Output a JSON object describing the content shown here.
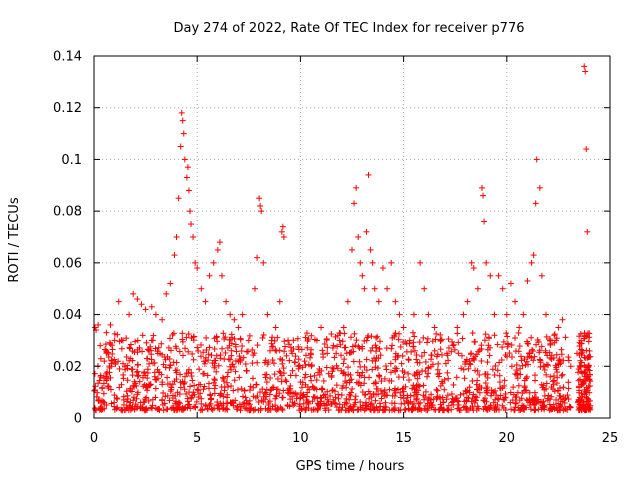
{
  "chart_data": {
    "type": "scatter",
    "title": "Day 274 of 2022, Rate Of TEC Index for receiver p776",
    "xlabel": "GPS time / hours",
    "ylabel": "ROTI / TECUs",
    "xlim": [
      0,
      25
    ],
    "ylim": [
      0,
      0.14
    ],
    "x_ticks": [
      0,
      5,
      10,
      15,
      20,
      25
    ],
    "y_ticks": [
      0,
      0.02,
      0.04,
      0.06,
      0.08,
      0.1,
      0.12,
      0.14
    ],
    "x_tick_labels": [
      "0",
      "5",
      "10",
      "15",
      "20",
      "25"
    ],
    "y_tick_labels": [
      "0",
      "0.02",
      "0.04",
      "0.06",
      "0.08",
      "0.1",
      "0.12",
      "0.14"
    ],
    "grid": true,
    "marker": "+",
    "color": "#ff0000",
    "series": [
      {
        "name": "ROTI",
        "points": [
          [
            0.05,
            0.035
          ],
          [
            0.1,
            0.034
          ],
          [
            0.2,
            0.036
          ],
          [
            0.3,
            0.028
          ],
          [
            0.5,
            0.022
          ],
          [
            0.6,
            0.033
          ],
          [
            0.8,
            0.036
          ],
          [
            1.0,
            0.03
          ],
          [
            1.2,
            0.045
          ],
          [
            1.4,
            0.03
          ],
          [
            1.7,
            0.04
          ],
          [
            1.9,
            0.048
          ],
          [
            2.1,
            0.046
          ],
          [
            2.3,
            0.044
          ],
          [
            2.5,
            0.042
          ],
          [
            2.8,
            0.043
          ],
          [
            3.0,
            0.04
          ],
          [
            3.3,
            0.038
          ],
          [
            3.5,
            0.048
          ],
          [
            3.7,
            0.052
          ],
          [
            3.9,
            0.063
          ],
          [
            4.0,
            0.07
          ],
          [
            4.1,
            0.085
          ],
          [
            4.2,
            0.105
          ],
          [
            4.25,
            0.118
          ],
          [
            4.3,
            0.115
          ],
          [
            4.35,
            0.11
          ],
          [
            4.4,
            0.1
          ],
          [
            4.5,
            0.093
          ],
          [
            4.55,
            0.097
          ],
          [
            4.6,
            0.088
          ],
          [
            4.65,
            0.08
          ],
          [
            4.7,
            0.075
          ],
          [
            4.8,
            0.07
          ],
          [
            4.9,
            0.06
          ],
          [
            5.0,
            0.058
          ],
          [
            5.2,
            0.05
          ],
          [
            5.4,
            0.045
          ],
          [
            5.6,
            0.055
          ],
          [
            5.8,
            0.06
          ],
          [
            6.0,
            0.065
          ],
          [
            6.1,
            0.068
          ],
          [
            6.2,
            0.055
          ],
          [
            6.4,
            0.045
          ],
          [
            6.6,
            0.04
          ],
          [
            6.8,
            0.038
          ],
          [
            7.0,
            0.035
          ],
          [
            7.2,
            0.04
          ],
          [
            7.5,
            0.03
          ],
          [
            7.8,
            0.05
          ],
          [
            7.9,
            0.062
          ],
          [
            8.0,
            0.085
          ],
          [
            8.05,
            0.082
          ],
          [
            8.1,
            0.08
          ],
          [
            8.2,
            0.06
          ],
          [
            8.4,
            0.04
          ],
          [
            8.6,
            0.03
          ],
          [
            8.8,
            0.035
          ],
          [
            9.0,
            0.045
          ],
          [
            9.1,
            0.072
          ],
          [
            9.15,
            0.074
          ],
          [
            9.2,
            0.07
          ],
          [
            9.4,
            0.03
          ],
          [
            9.6,
            0.025
          ],
          [
            9.9,
            0.02
          ],
          [
            10.2,
            0.022
          ],
          [
            10.5,
            0.025
          ],
          [
            10.8,
            0.03
          ],
          [
            11.0,
            0.035
          ],
          [
            11.3,
            0.025
          ],
          [
            11.6,
            0.028
          ],
          [
            11.9,
            0.03
          ],
          [
            12.1,
            0.035
          ],
          [
            12.3,
            0.045
          ],
          [
            12.5,
            0.065
          ],
          [
            12.6,
            0.083
          ],
          [
            12.7,
            0.089
          ],
          [
            12.8,
            0.07
          ],
          [
            12.9,
            0.06
          ],
          [
            13.0,
            0.055
          ],
          [
            13.1,
            0.05
          ],
          [
            13.2,
            0.072
          ],
          [
            13.3,
            0.094
          ],
          [
            13.4,
            0.065
          ],
          [
            13.5,
            0.06
          ],
          [
            13.6,
            0.05
          ],
          [
            13.8,
            0.045
          ],
          [
            14.0,
            0.058
          ],
          [
            14.2,
            0.05
          ],
          [
            14.4,
            0.06
          ],
          [
            14.6,
            0.045
          ],
          [
            14.8,
            0.04
          ],
          [
            15.0,
            0.035
          ],
          [
            15.3,
            0.03
          ],
          [
            15.5,
            0.04
          ],
          [
            15.8,
            0.06
          ],
          [
            16.0,
            0.05
          ],
          [
            16.2,
            0.04
          ],
          [
            16.5,
            0.035
          ],
          [
            16.8,
            0.03
          ],
          [
            17.1,
            0.025
          ],
          [
            17.4,
            0.028
          ],
          [
            17.6,
            0.035
          ],
          [
            17.9,
            0.04
          ],
          [
            18.1,
            0.045
          ],
          [
            18.3,
            0.06
          ],
          [
            18.4,
            0.058
          ],
          [
            18.6,
            0.05
          ],
          [
            18.8,
            0.089
          ],
          [
            18.85,
            0.086
          ],
          [
            18.9,
            0.076
          ],
          [
            19.0,
            0.06
          ],
          [
            19.2,
            0.055
          ],
          [
            19.4,
            0.04
          ],
          [
            19.6,
            0.055
          ],
          [
            19.8,
            0.05
          ],
          [
            20.0,
            0.04
          ],
          [
            20.2,
            0.052
          ],
          [
            20.4,
            0.045
          ],
          [
            20.6,
            0.035
          ],
          [
            20.8,
            0.04
          ],
          [
            21.0,
            0.053
          ],
          [
            21.2,
            0.06
          ],
          [
            21.3,
            0.063
          ],
          [
            21.4,
            0.083
          ],
          [
            21.45,
            0.1
          ],
          [
            21.6,
            0.089
          ],
          [
            21.7,
            0.055
          ],
          [
            21.9,
            0.04
          ],
          [
            22.1,
            0.03
          ],
          [
            22.3,
            0.032
          ],
          [
            22.5,
            0.035
          ],
          [
            22.7,
            0.038
          ],
          [
            23.1,
            0.02
          ],
          [
            23.4,
            0.025
          ],
          [
            23.6,
            0.018
          ],
          [
            23.75,
            0.136
          ],
          [
            23.8,
            0.134
          ],
          [
            23.85,
            0.104
          ],
          [
            23.9,
            0.072
          ],
          [
            23.95,
            0.02
          ],
          [
            24.0,
            0.015
          ]
        ]
      }
    ]
  }
}
